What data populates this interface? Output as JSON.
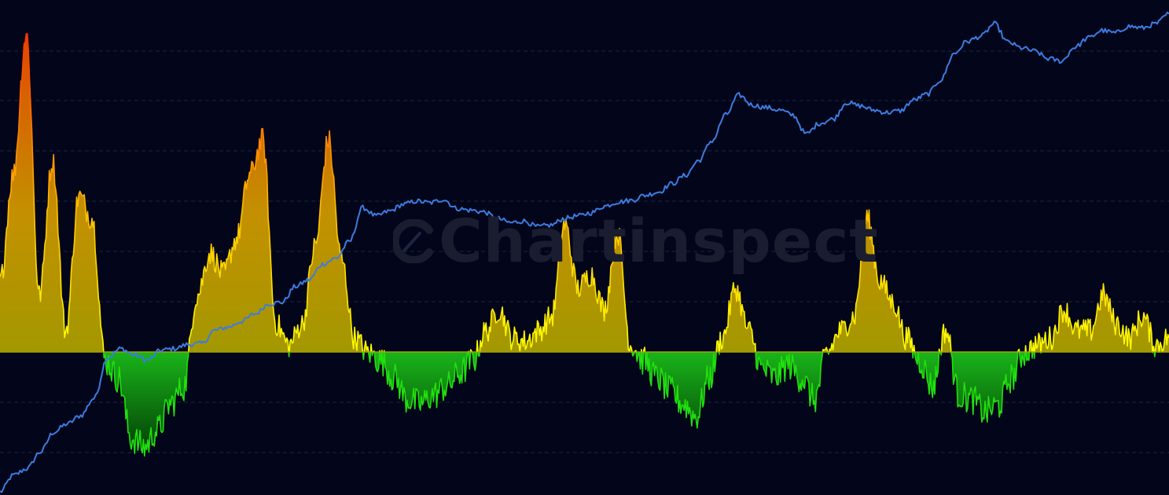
{
  "watermark": {
    "text": "Chartinspect"
  },
  "colors": {
    "background": "#03061a",
    "grid": "#1c2440",
    "price_line": "#3d7be0",
    "zero_line": "#a0a010",
    "positive_low": "#ffff00",
    "positive_high": "#ff3300",
    "positive_fill": "#b5a800",
    "negative_line": "#22e00e",
    "negative_fill": "#0a8a0a"
  },
  "chart_data": {
    "type": "area",
    "title": "",
    "xlabel": "",
    "ylabel": "",
    "grid": true,
    "legend": "none",
    "series": [
      {
        "kind": "line",
        "scale": "log",
        "values": [
          -1.0,
          -0.8,
          -0.72,
          -0.52,
          -0.28,
          -0.18,
          -0.08,
          0.13,
          0.62,
          0.73,
          0.65,
          0.59,
          0.71,
          0.73,
          0.78,
          0.79,
          0.95,
          0.99,
          1.06,
          1.15,
          1.27,
          1.29,
          1.48,
          1.56,
          1.75,
          1.82,
          2.02,
          2.43,
          2.33,
          2.39,
          2.47,
          2.51,
          2.49,
          2.53,
          2.42,
          2.4,
          2.38,
          2.3,
          2.25,
          2.27,
          2.2,
          2.22,
          2.3,
          2.33,
          2.37,
          2.45,
          2.5,
          2.52,
          2.58,
          2.62,
          2.72,
          2.82,
          3.0,
          3.24,
          3.55,
          3.79,
          3.67,
          3.64,
          3.61,
          3.55,
          3.32,
          3.45,
          3.5,
          3.7,
          3.66,
          3.61,
          3.58,
          3.6,
          3.73,
          3.8,
          3.97,
          4.29,
          4.44,
          4.5,
          4.65,
          4.43,
          4.36,
          4.32,
          4.23,
          4.2,
          4.37,
          4.48,
          4.57,
          4.54,
          4.62,
          4.6,
          4.65,
          4.77
        ]
      },
      {
        "kind": "oscillator",
        "values": [
          1.0,
          2.5,
          4.5,
          0.8,
          2.7,
          0.3,
          2.2,
          1.9,
          -0.1,
          -0.3,
          -1.0,
          -1.1,
          -0.9,
          -0.6,
          -0.4,
          0.8,
          1.4,
          1.1,
          1.6,
          2.5,
          3.0,
          0.4,
          0.1,
          0.4,
          1.5,
          3.0,
          1.3,
          0.2,
          0.0,
          -0.1,
          -0.3,
          -0.55,
          -0.6,
          -0.5,
          -0.4,
          -0.25,
          -0.1,
          0.3,
          0.6,
          0.2,
          0.15,
          0.3,
          0.5,
          1.8,
          0.9,
          1.1,
          0.6,
          1.7,
          0.1,
          -0.1,
          -0.3,
          -0.45,
          -0.6,
          -0.75,
          -0.3,
          0.2,
          0.9,
          0.3,
          -0.2,
          -0.3,
          -0.15,
          -0.3,
          -0.55,
          0.0,
          0.3,
          0.5,
          1.9,
          1.0,
          0.7,
          0.2,
          -0.1,
          -0.4,
          0.3,
          -0.5,
          -0.55,
          -0.7,
          -0.62,
          -0.3,
          0.0,
          0.1,
          0.2,
          0.6,
          0.3,
          0.3,
          0.8,
          0.4,
          0.2,
          0.5,
          0.1,
          0.2
        ]
      }
    ]
  }
}
